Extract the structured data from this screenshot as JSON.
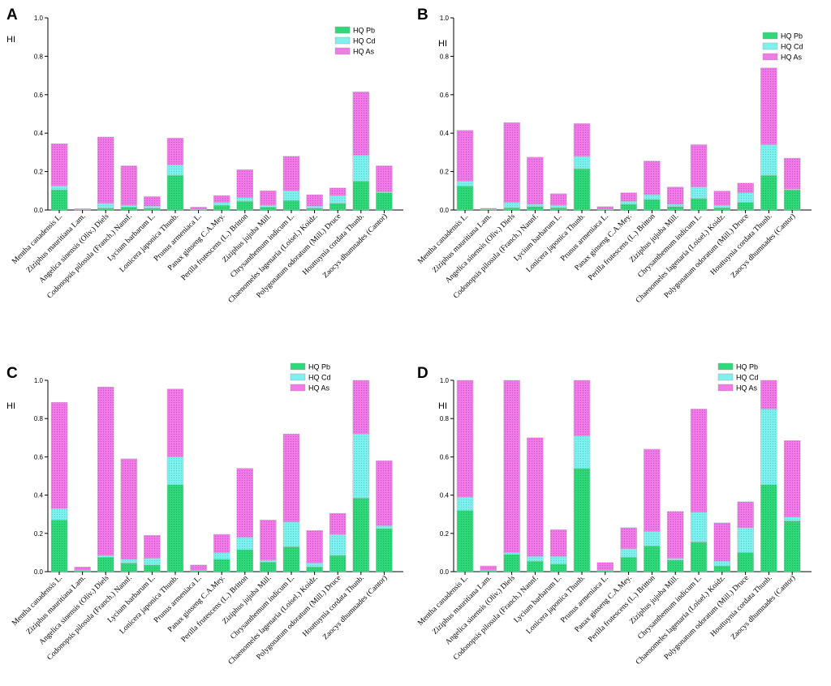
{
  "figure": {
    "ylabel": "HI",
    "colors": {
      "HQ Pb": "#2fd97a",
      "HQ Cd": "#7ff0ee",
      "HQ As": "#f07ae8"
    }
  },
  "chart_data": [
    {
      "panel": "A",
      "type": "bar",
      "stacked": true,
      "ylabel": "HI",
      "ylim": [
        0,
        1.0
      ],
      "yticks": [
        "0.0",
        "0.2",
        "0.4",
        "0.6",
        "0.8",
        "1.0"
      ],
      "legend": [
        "HQ Pb",
        "HQ Cd",
        "HQ As"
      ],
      "legend_position": "top-right",
      "categories": [
        "Mentha canadensis L.",
        "Ziziphus mauritiana Lam.",
        "Angelica sinensis (Oliv.) Diels",
        "Codonopsis pilosula (Franch.) Nannf.",
        "Lycium barbarum L.",
        "Lonicera japonica Thunb.",
        "Prunus armeniaca L.",
        "Panax ginseng C.A.Mey.",
        "Perilla frutescens (L.) Britton",
        "Ziziphus jujuba Mill.",
        "Chrysanthemum indicum L.",
        "Chaenomeles lagenaria (Loisel.) Koidz.",
        "Polygonatum odoratum (Mill.) Druce",
        "Houttuynia cordata Thunb.",
        "Zaocys dhumnades (Cantor)"
      ],
      "series": [
        {
          "name": "HQ Pb",
          "values": [
            0.105,
            0.002,
            0.01,
            0.015,
            0.01,
            0.18,
            0.002,
            0.025,
            0.045,
            0.015,
            0.05,
            0.01,
            0.035,
            0.15,
            0.09
          ]
        },
        {
          "name": "HQ Cd",
          "values": [
            0.02,
            0.001,
            0.025,
            0.01,
            0.01,
            0.055,
            0.001,
            0.015,
            0.02,
            0.01,
            0.05,
            0.01,
            0.04,
            0.135,
            0.005
          ]
        },
        {
          "name": "HQ As",
          "values": [
            0.22,
            0.004,
            0.345,
            0.205,
            0.05,
            0.14,
            0.012,
            0.035,
            0.145,
            0.075,
            0.18,
            0.06,
            0.04,
            0.33,
            0.135
          ]
        }
      ]
    },
    {
      "panel": "B",
      "type": "bar",
      "stacked": true,
      "ylabel": "HI",
      "ylim": [
        0,
        1.0
      ],
      "yticks": [
        "0.0",
        "0.2",
        "0.4",
        "0.6",
        "0.8",
        "1.0"
      ],
      "legend": [
        "HQ Pb",
        "HQ Cd",
        "HQ As"
      ],
      "legend_position": "top-right",
      "categories": [
        "Mentha canadensis L.",
        "Ziziphus mauritiana Lam.",
        "Angelica sinensis (Oliv.) Diels",
        "Codonopsis pilosula (Franch.) Nannf.",
        "Lycium barbarum L.",
        "Lonicera japonica Thunb.",
        "Prunus armeniaca L.",
        "Panax ginseng C.A.Mey.",
        "Perilla frutescens (L.) Britton",
        "Ziziphus jujuba Mill.",
        "Chrysanthemum indicum L.",
        "Chaenomeles lagenaria (Loisel.) Koidz.",
        "Polygonatum odoratum (Mill.) Druce",
        "Houttuynia cordata Thunb.",
        "Zaocys dhumnades (Cantor)"
      ],
      "series": [
        {
          "name": "HQ Pb",
          "values": [
            0.125,
            0.003,
            0.012,
            0.018,
            0.012,
            0.215,
            0.003,
            0.03,
            0.055,
            0.018,
            0.06,
            0.012,
            0.04,
            0.18,
            0.105
          ]
        },
        {
          "name": "HQ Cd",
          "values": [
            0.025,
            0.001,
            0.028,
            0.012,
            0.013,
            0.065,
            0.001,
            0.015,
            0.025,
            0.012,
            0.06,
            0.012,
            0.05,
            0.16,
            0.005
          ]
        },
        {
          "name": "HQ As",
          "values": [
            0.265,
            0.005,
            0.415,
            0.245,
            0.06,
            0.17,
            0.014,
            0.045,
            0.175,
            0.09,
            0.22,
            0.075,
            0.05,
            0.4,
            0.16
          ]
        }
      ]
    },
    {
      "panel": "C",
      "type": "bar",
      "stacked": true,
      "ylabel": "HI",
      "ylim": [
        0,
        1.0
      ],
      "yticks": [
        "0.0",
        "0.2",
        "0.4",
        "0.6",
        "0.8",
        "1.0"
      ],
      "legend": [
        "HQ Pb",
        "HQ Cd",
        "HQ As"
      ],
      "legend_position": "top-right",
      "categories": [
        "Mentha canadensis L.",
        "Ziziphus mauritiana Lam.",
        "Angelica sinensis (Oliv.) Diels",
        "Codonopsis pilosula (Franch.) Nannf.",
        "Lycium barbarum L.",
        "Lonicera japonica Thunb.",
        "Prunus armeniaca L.",
        "Panax ginseng C.A.Mey.",
        "Perilla frutescens (L.) Britton",
        "Ziziphus jujuba Mill.",
        "Chrysanthemum indicum L.",
        "Chaenomeles lagenaria (Loisel.) Koidz.",
        "Polygonatum odoratum (Mill.) Druce",
        "Houttuynia cordata Thunb.",
        "Zaocys dhumnades (Cantor)"
      ],
      "series": [
        {
          "name": "HQ Pb",
          "values": [
            0.27,
            0.005,
            0.075,
            0.045,
            0.035,
            0.455,
            0.005,
            0.065,
            0.115,
            0.05,
            0.13,
            0.025,
            0.085,
            0.385,
            0.225
          ]
        },
        {
          "name": "HQ Cd",
          "values": [
            0.06,
            0.002,
            0.01,
            0.02,
            0.035,
            0.145,
            0.002,
            0.035,
            0.065,
            0.01,
            0.13,
            0.02,
            0.11,
            0.335,
            0.015
          ]
        },
        {
          "name": "HQ As",
          "values": [
            0.555,
            0.018,
            0.88,
            0.525,
            0.12,
            0.355,
            0.028,
            0.095,
            0.36,
            0.21,
            0.46,
            0.17,
            0.11,
            0.28,
            0.34
          ]
        }
      ]
    },
    {
      "panel": "D",
      "type": "bar",
      "stacked": true,
      "ylabel": "HI",
      "ylim": [
        0,
        1.0
      ],
      "yticks": [
        "0.0",
        "0.2",
        "0.4",
        "0.6",
        "0.8",
        "1.0"
      ],
      "legend": [
        "HQ Pb",
        "HQ Cd",
        "HQ As"
      ],
      "legend_position": "top-right",
      "categories": [
        "Mentha canadensis L.",
        "Ziziphus mauritiana Lam.",
        "Angelica sinensis (Oliv.) Diels",
        "Codonopsis pilosula (Franch.) Nannf.",
        "Lycium barbarum L.",
        "Lonicera japonica Thunb.",
        "Prunus armeniaca L.",
        "Panax ginseng C.A.Mey.",
        "Perilla frutescens (L.) Britton",
        "Ziziphus jujuba Mill.",
        "Chrysanthemum indicum L.",
        "Chaenomeles lagenaria (Loisel.) Koidz.",
        "Polygonatum odoratum (Mill.) Druce",
        "Houttuynia cordata Thunb.",
        "Zaocys dhumnades (Cantor)"
      ],
      "series": [
        {
          "name": "HQ Pb",
          "values": [
            0.32,
            0.006,
            0.09,
            0.055,
            0.04,
            0.54,
            0.006,
            0.075,
            0.135,
            0.06,
            0.155,
            0.03,
            0.1,
            0.455,
            0.265
          ]
        },
        {
          "name": "HQ Cd",
          "values": [
            0.07,
            0.002,
            0.01,
            0.025,
            0.04,
            0.17,
            0.002,
            0.045,
            0.075,
            0.01,
            0.155,
            0.025,
            0.13,
            0.395,
            0.02
          ]
        },
        {
          "name": "HQ As",
          "values": [
            0.61,
            0.022,
            0.9,
            0.62,
            0.14,
            0.29,
            0.04,
            0.11,
            0.43,
            0.245,
            0.54,
            0.2,
            0.135,
            0.15,
            0.4
          ]
        }
      ]
    }
  ]
}
